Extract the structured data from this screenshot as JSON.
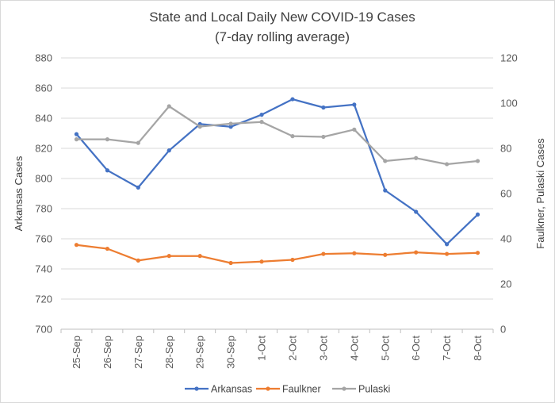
{
  "chart_data": {
    "type": "line",
    "title": "State and Local Daily New COVID-19 Cases",
    "subtitle": "(7-day rolling average)",
    "categories": [
      "25-Sep",
      "26-Sep",
      "27-Sep",
      "28-Sep",
      "29-Sep",
      "30-Sep",
      "1-Oct",
      "2-Oct",
      "3-Oct",
      "4-Oct",
      "5-Oct",
      "6-Oct",
      "7-Oct",
      "8-Oct"
    ],
    "ylabel_left": "Arkansas Cases",
    "ylabel_right": "Faulkner, Pulaski Cases",
    "ylim_left": [
      700,
      880
    ],
    "yticks_left": [
      700,
      720,
      740,
      760,
      780,
      800,
      820,
      840,
      860,
      880
    ],
    "ylim_right": [
      0,
      120
    ],
    "yticks_right": [
      0,
      20,
      40,
      60,
      80,
      100,
      120
    ],
    "grid": true,
    "legend_position": "bottom",
    "series": [
      {
        "name": "Arkansas",
        "axis": "left",
        "color": "#4472c4",
        "values": [
          829.4,
          805.4,
          794.0,
          818.6,
          836.1,
          834.3,
          842.3,
          852.6,
          847.1,
          849.0,
          792.1,
          777.9,
          756.4,
          776.1
        ]
      },
      {
        "name": "Faulkner",
        "axis": "right",
        "color": "#ed7d31",
        "values": [
          37.3,
          35.6,
          30.4,
          32.4,
          32.4,
          29.3,
          29.9,
          30.7,
          33.3,
          33.6,
          32.9,
          34.0,
          33.3,
          33.8
        ]
      },
      {
        "name": "Pulaski",
        "axis": "right",
        "color": "#a5a5a5",
        "values": [
          84.0,
          84.0,
          82.4,
          98.6,
          89.6,
          90.9,
          91.7,
          85.4,
          85.1,
          88.3,
          74.4,
          75.7,
          73.0,
          74.4
        ]
      }
    ]
  }
}
